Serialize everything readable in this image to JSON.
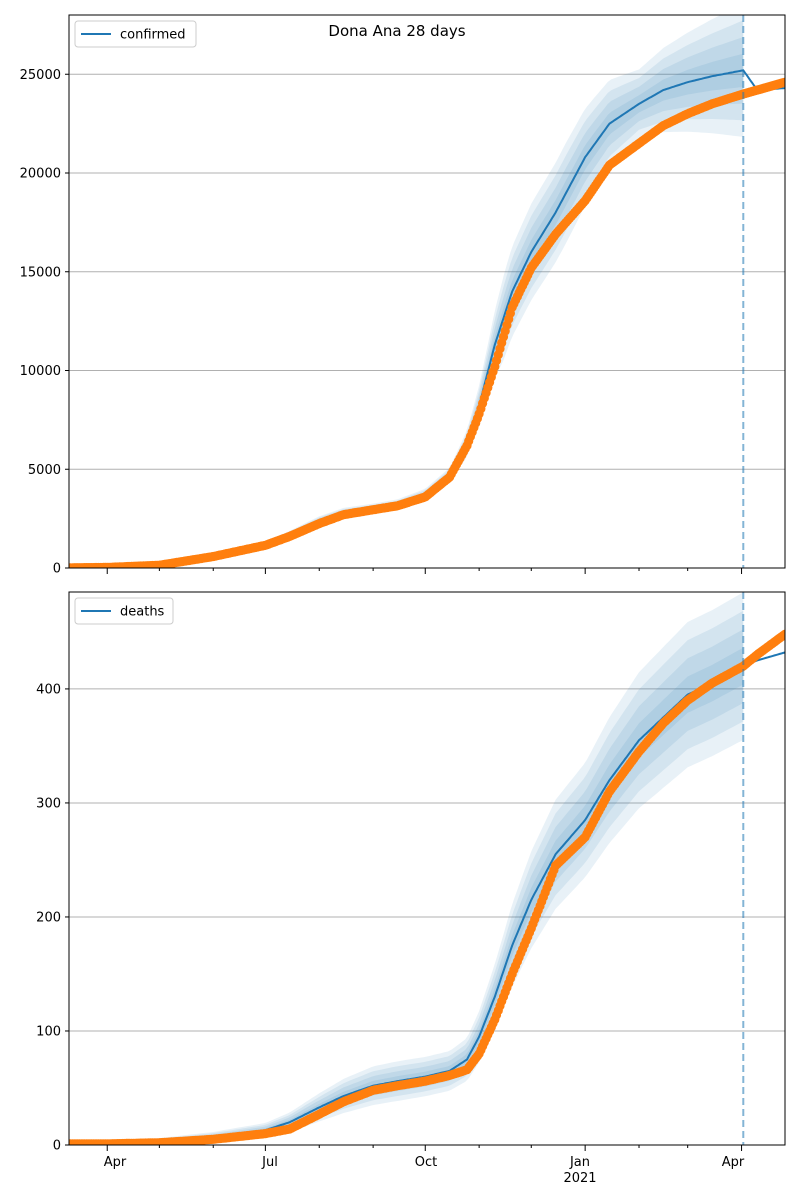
{
  "figure": {
    "title": "Dona Ana 28 days"
  },
  "x_axis": {
    "tick_labels": [
      "Apr",
      "Jul",
      "Oct",
      "Jan",
      "Apr"
    ],
    "year_label": "2021"
  },
  "colors": {
    "model_line": "#1f77b4",
    "band": "#1f77b4",
    "observed": "#ff7f0e",
    "vline": "#1f77b4",
    "grid": "#b0b0b0",
    "legend_border": "#cccccc"
  },
  "chart_data": [
    {
      "type": "line",
      "panel": "top",
      "legend": [
        "confirmed"
      ],
      "legend_position": "top-left",
      "grid": "horizontal",
      "xlim": [
        "2020-03-10",
        "2021-04-26"
      ],
      "ylim": [
        0,
        28000
      ],
      "yticks": [
        0,
        5000,
        10000,
        15000,
        20000,
        25000
      ],
      "forecast_start": "2021-04-02",
      "series": [
        {
          "name": "confirmed",
          "kind": "model",
          "x": [
            "2020-03-10",
            "2020-04-01",
            "2020-05-01",
            "2020-06-01",
            "2020-07-01",
            "2020-07-15",
            "2020-08-01",
            "2020-08-15",
            "2020-09-01",
            "2020-09-15",
            "2020-10-01",
            "2020-10-15",
            "2020-10-25",
            "2020-11-01",
            "2020-11-10",
            "2020-11-20",
            "2020-12-01",
            "2020-12-15",
            "2021-01-01",
            "2021-01-15",
            "2021-02-01",
            "2021-02-15",
            "2021-03-01",
            "2021-03-15",
            "2021-04-02",
            "2021-04-10",
            "2021-04-26"
          ],
          "y": [
            10,
            30,
            150,
            600,
            1200,
            1700,
            2400,
            2800,
            3000,
            3200,
            3700,
            4700,
            6300,
            8200,
            11300,
            14000,
            16000,
            18000,
            20800,
            22500,
            23500,
            24200,
            24600,
            24900,
            25200,
            24200,
            24300
          ]
        },
        {
          "name": "confirmed-observed",
          "kind": "observed",
          "x": [
            "2020-03-10",
            "2020-04-01",
            "2020-05-01",
            "2020-06-01",
            "2020-07-01",
            "2020-07-15",
            "2020-08-01",
            "2020-08-15",
            "2020-09-01",
            "2020-09-15",
            "2020-10-01",
            "2020-10-15",
            "2020-10-25",
            "2020-11-01",
            "2020-11-10",
            "2020-11-20",
            "2020-12-01",
            "2020-12-15",
            "2021-01-01",
            "2021-01-15",
            "2021-02-01",
            "2021-02-15",
            "2021-03-01",
            "2021-03-15",
            "2021-04-02",
            "2021-04-10",
            "2021-04-26"
          ],
          "y": [
            10,
            30,
            140,
            580,
            1150,
            1600,
            2250,
            2700,
            2950,
            3150,
            3600,
            4600,
            6200,
            7800,
            10200,
            13200,
            15200,
            16900,
            18600,
            20400,
            21500,
            22400,
            23000,
            23500,
            24000,
            24200,
            24600
          ]
        }
      ],
      "band_scale": [
        {
          "x": "2020-03-10",
          "w": 0.04
        },
        {
          "x": "2020-08-01",
          "w": 0.05
        },
        {
          "x": "2020-10-15",
          "w": 0.06
        },
        {
          "x": "2020-11-15",
          "w": 0.16
        },
        {
          "x": "2020-12-20",
          "w": 0.13
        },
        {
          "x": "2021-02-01",
          "w": 0.07
        },
        {
          "x": "2021-04-02",
          "w": 0.13
        }
      ]
    },
    {
      "type": "line",
      "panel": "bottom",
      "legend": [
        "deaths"
      ],
      "legend_position": "top-left",
      "grid": "horizontal",
      "xlim": [
        "2020-03-10",
        "2021-04-26"
      ],
      "ylim": [
        0,
        485
      ],
      "yticks": [
        0,
        100,
        200,
        300,
        400
      ],
      "forecast_start": "2021-04-02",
      "series": [
        {
          "name": "deaths",
          "kind": "model",
          "x": [
            "2020-03-10",
            "2020-04-01",
            "2020-05-01",
            "2020-06-01",
            "2020-07-01",
            "2020-07-15",
            "2020-08-01",
            "2020-08-15",
            "2020-09-01",
            "2020-09-15",
            "2020-10-01",
            "2020-10-15",
            "2020-10-25",
            "2020-11-01",
            "2020-11-10",
            "2020-11-20",
            "2020-12-01",
            "2020-12-15",
            "2021-01-01",
            "2021-01-15",
            "2021-02-01",
            "2021-02-15",
            "2021-03-01",
            "2021-03-15",
            "2021-04-02",
            "2021-04-10",
            "2021-04-26"
          ],
          "y": [
            1,
            1,
            3,
            7,
            13,
            20,
            33,
            43,
            52,
            56,
            60,
            65,
            75,
            95,
            130,
            175,
            215,
            255,
            285,
            320,
            355,
            375,
            395,
            405,
            420,
            425,
            432
          ]
        },
        {
          "name": "deaths-observed",
          "kind": "observed",
          "x": [
            "2020-03-10",
            "2020-04-01",
            "2020-05-01",
            "2020-06-01",
            "2020-07-01",
            "2020-07-15",
            "2020-08-01",
            "2020-08-15",
            "2020-09-01",
            "2020-09-15",
            "2020-10-01",
            "2020-10-15",
            "2020-10-25",
            "2020-11-01",
            "2020-11-10",
            "2020-11-20",
            "2020-12-01",
            "2020-12-15",
            "2021-01-01",
            "2021-01-15",
            "2021-02-01",
            "2021-02-15",
            "2021-03-01",
            "2021-03-15",
            "2021-04-02",
            "2021-04-10",
            "2021-04-26"
          ],
          "y": [
            1,
            1,
            2,
            5,
            10,
            14,
            27,
            38,
            48,
            52,
            56,
            61,
            66,
            80,
            110,
            150,
            190,
            245,
            270,
            310,
            345,
            370,
            390,
            405,
            420,
            430,
            448
          ]
        }
      ],
      "band_scale": [
        {
          "x": "2020-03-10",
          "w": 0.5
        },
        {
          "x": "2020-07-01",
          "w": 0.35
        },
        {
          "x": "2020-09-15",
          "w": 0.28
        },
        {
          "x": "2020-11-15",
          "w": 0.2
        },
        {
          "x": "2021-01-01",
          "w": 0.17
        },
        {
          "x": "2021-04-02",
          "w": 0.15
        }
      ]
    }
  ]
}
